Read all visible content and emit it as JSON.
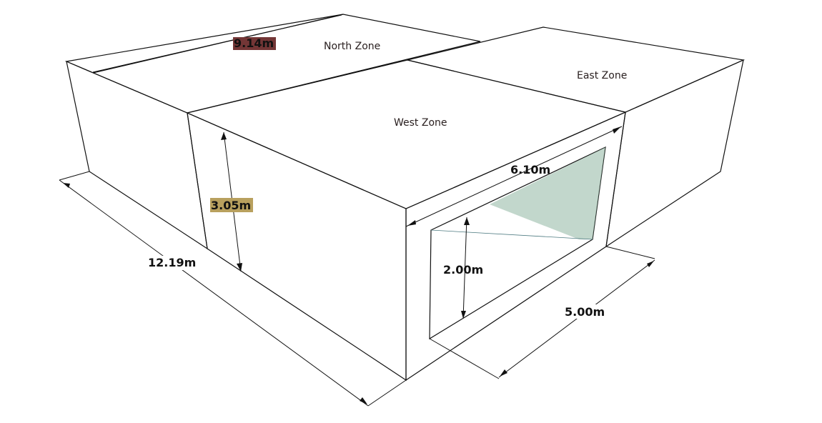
{
  "zones": {
    "north": "North Zone",
    "west": "West Zone",
    "east": "East Zone"
  },
  "dimensions": {
    "width_top": "9.14m",
    "height": "3.05m",
    "length_side": "12.19m",
    "window_width": "6.10m",
    "window_height": "2.00m",
    "depth": "5.00m"
  },
  "colors": {
    "roof": "#733636",
    "wall": "#b8a05e",
    "wall_shade": "#ad9657",
    "glass": "#6c9fae",
    "edge": "#111111"
  }
}
